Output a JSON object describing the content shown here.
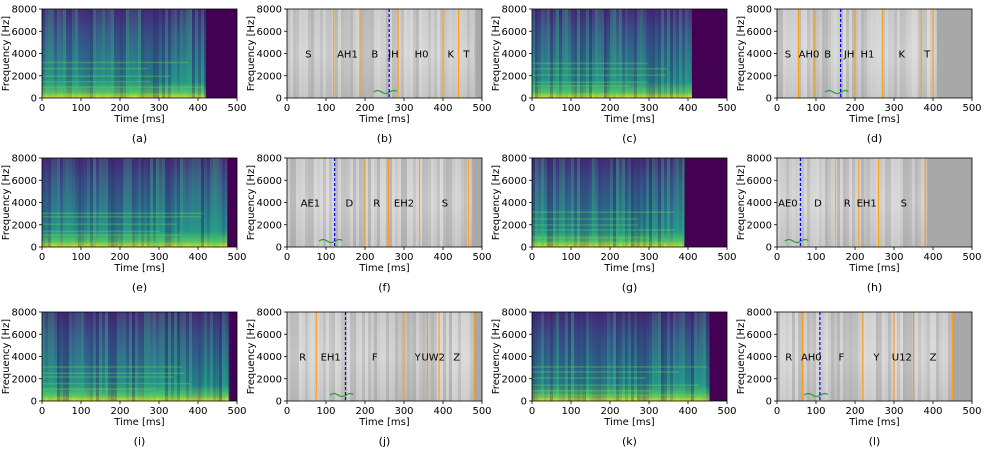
{
  "colors": {
    "spectrogram_high": "#f5e51f",
    "spectrogram_low": "#440154",
    "greyscale_bg": "#c8c8c8",
    "phone_boundary": "#ff9f1c",
    "split_boundary": "#0000ee",
    "f0_trace": "#2ca02c"
  },
  "chart_data": [
    {
      "id": "a",
      "type": "heatmap",
      "variant": "spectrogram",
      "subcaption": "(a)",
      "xlabel": "Time [ms]",
      "ylabel": "Frequency [Hz]",
      "xlim": [
        0,
        500
      ],
      "ylim": [
        0,
        8000
      ],
      "xticks": [
        0,
        100,
        200,
        300,
        400,
        500
      ],
      "yticks": [
        0,
        2000,
        4000,
        6000,
        8000
      ],
      "speech_end_ms": 420
    },
    {
      "id": "b",
      "type": "heatmap",
      "variant": "annotated",
      "subcaption": "(b)",
      "xlabel": "Time [ms]",
      "ylabel": "Frequency [Hz]",
      "xlim": [
        0,
        500
      ],
      "ylim": [
        0,
        8000
      ],
      "xticks": [
        0,
        100,
        200,
        300,
        400,
        500
      ],
      "yticks": [
        0,
        2000,
        4000,
        6000,
        8000
      ],
      "speech_end_ms": 480,
      "phones": [
        {
          "label": "S",
          "x": 55
        },
        {
          "label": "AH1",
          "x": 155
        },
        {
          "label": "B",
          "x": 225
        },
        {
          "label": "JH",
          "x": 273
        },
        {
          "label": "H0",
          "x": 345
        },
        {
          "label": "K",
          "x": 420
        },
        {
          "label": "T",
          "x": 460
        }
      ],
      "boundaries": [
        120,
        190,
        285,
        400,
        440
      ],
      "split": 262
    },
    {
      "id": "c",
      "type": "heatmap",
      "variant": "spectrogram",
      "subcaption": "(c)",
      "xlabel": "Time [ms]",
      "ylabel": "Frequency [Hz]",
      "xlim": [
        0,
        500
      ],
      "ylim": [
        0,
        8000
      ],
      "xticks": [
        0,
        100,
        200,
        300,
        400,
        500
      ],
      "yticks": [
        0,
        2000,
        4000,
        6000,
        8000
      ],
      "speech_end_ms": 410
    },
    {
      "id": "d",
      "type": "heatmap",
      "variant": "annotated",
      "subcaption": "(d)",
      "xlabel": "Time [ms]",
      "ylabel": "Frequency [Hz]",
      "xlim": [
        0,
        500
      ],
      "ylim": [
        0,
        8000
      ],
      "xticks": [
        0,
        100,
        200,
        300,
        400,
        500
      ],
      "yticks": [
        0,
        2000,
        4000,
        6000,
        8000
      ],
      "speech_end_ms": 410,
      "phones": [
        {
          "label": "S",
          "x": 28
        },
        {
          "label": "AH0",
          "x": 82
        },
        {
          "label": "B",
          "x": 130
        },
        {
          "label": "JH",
          "x": 185
        },
        {
          "label": "H1",
          "x": 232
        },
        {
          "label": "K",
          "x": 320
        },
        {
          "label": "T",
          "x": 385
        }
      ],
      "boundaries": [
        55,
        95,
        200,
        270,
        370,
        400
      ],
      "split": 163
    },
    {
      "id": "e",
      "type": "heatmap",
      "variant": "spectrogram",
      "subcaption": "(e)",
      "xlabel": "Time [ms]",
      "ylabel": "Frequency [Hz]",
      "xlim": [
        0,
        500
      ],
      "ylim": [
        0,
        8000
      ],
      "xticks": [
        0,
        100,
        200,
        300,
        400,
        500
      ],
      "yticks": [
        0,
        2000,
        4000,
        6000,
        8000
      ],
      "speech_end_ms": 475
    },
    {
      "id": "f",
      "type": "heatmap",
      "variant": "annotated",
      "subcaption": "(f)",
      "xlabel": "Time [ms]",
      "ylabel": "Frequency [Hz]",
      "xlim": [
        0,
        500
      ],
      "ylim": [
        0,
        8000
      ],
      "xticks": [
        0,
        100,
        200,
        300,
        400,
        500
      ],
      "yticks": [
        0,
        2000,
        4000,
        6000,
        8000
      ],
      "speech_end_ms": 475,
      "phones": [
        {
          "label": "AE1",
          "x": 60
        },
        {
          "label": "D",
          "x": 160
        },
        {
          "label": "R",
          "x": 230
        },
        {
          "label": "EH2",
          "x": 300
        },
        {
          "label": "S",
          "x": 405
        }
      ],
      "boundaries": [
        200,
        260,
        340,
        465
      ],
      "split": 122
    },
    {
      "id": "g",
      "type": "heatmap",
      "variant": "spectrogram",
      "subcaption": "(g)",
      "xlabel": "Time [ms]",
      "ylabel": "Frequency [Hz]",
      "xlim": [
        0,
        500
      ],
      "ylim": [
        0,
        8000
      ],
      "xticks": [
        0,
        100,
        200,
        300,
        400,
        500
      ],
      "yticks": [
        0,
        2000,
        4000,
        6000,
        8000
      ],
      "speech_end_ms": 390
    },
    {
      "id": "h",
      "type": "heatmap",
      "variant": "annotated",
      "subcaption": "(h)",
      "xlabel": "Time [ms]",
      "ylabel": "Frequency [Hz]",
      "xlim": [
        0,
        500
      ],
      "ylim": [
        0,
        8000
      ],
      "xticks": [
        0,
        100,
        200,
        300,
        400,
        500
      ],
      "yticks": [
        0,
        2000,
        4000,
        6000,
        8000
      ],
      "speech_end_ms": 385,
      "phones": [
        {
          "label": "AE0",
          "x": 28
        },
        {
          "label": "D",
          "x": 105
        },
        {
          "label": "R",
          "x": 180
        },
        {
          "label": "EH1",
          "x": 230
        },
        {
          "label": "S",
          "x": 325
        }
      ],
      "boundaries": [
        150,
        210,
        260,
        380
      ],
      "split": 60
    },
    {
      "id": "i",
      "type": "heatmap",
      "variant": "spectrogram",
      "subcaption": "(i)",
      "xlabel": "Time [ms]",
      "ylabel": "Frequency [Hz]",
      "xlim": [
        0,
        500
      ],
      "ylim": [
        0,
        8000
      ],
      "xticks": [
        0,
        100,
        200,
        300,
        400,
        500
      ],
      "yticks": [
        0,
        2000,
        4000,
        6000,
        8000
      ],
      "speech_end_ms": 480
    },
    {
      "id": "j",
      "type": "heatmap",
      "variant": "annotated",
      "subcaption": "(j)",
      "xlabel": "Time [ms]",
      "ylabel": "Frequency [Hz]",
      "xlim": [
        0,
        500
      ],
      "ylim": [
        0,
        8000
      ],
      "xticks": [
        0,
        100,
        200,
        300,
        400,
        500
      ],
      "yticks": [
        0,
        2000,
        4000,
        6000,
        8000
      ],
      "speech_end_ms": 480,
      "phones": [
        {
          "label": "R",
          "x": 40
        },
        {
          "label": "EH1",
          "x": 112
        },
        {
          "label": "F",
          "x": 225
        },
        {
          "label": "Y",
          "x": 335
        },
        {
          "label": "UW2",
          "x": 375
        },
        {
          "label": "Z",
          "x": 435
        }
      ],
      "boundaries": [
        75,
        300,
        360,
        390,
        480
      ],
      "split": 150
    },
    {
      "id": "k",
      "type": "heatmap",
      "variant": "spectrogram",
      "subcaption": "(k)",
      "xlabel": "Time [ms]",
      "ylabel": "Frequency [Hz]",
      "xlim": [
        0,
        500
      ],
      "ylim": [
        0,
        8000
      ],
      "xticks": [
        0,
        100,
        200,
        300,
        400,
        500
      ],
      "yticks": [
        0,
        2000,
        4000,
        6000,
        8000
      ],
      "speech_end_ms": 455
    },
    {
      "id": "l",
      "type": "heatmap",
      "variant": "annotated",
      "subcaption": "(l)",
      "xlabel": "Time [ms]",
      "ylabel": "Frequency [Hz]",
      "xlim": [
        0,
        500
      ],
      "ylim": [
        0,
        8000
      ],
      "xticks": [
        0,
        100,
        200,
        300,
        400,
        500
      ],
      "yticks": [
        0,
        2000,
        4000,
        6000,
        8000
      ],
      "speech_end_ms": 450,
      "phones": [
        {
          "label": "R",
          "x": 30
        },
        {
          "label": "AH0",
          "x": 88
        },
        {
          "label": "F",
          "x": 165
        },
        {
          "label": "Y",
          "x": 255
        },
        {
          "label": "U12",
          "x": 320
        },
        {
          "label": "Z",
          "x": 400
        }
      ],
      "boundaries": [
        65,
        220,
        300,
        350,
        450
      ],
      "split": 110
    }
  ]
}
